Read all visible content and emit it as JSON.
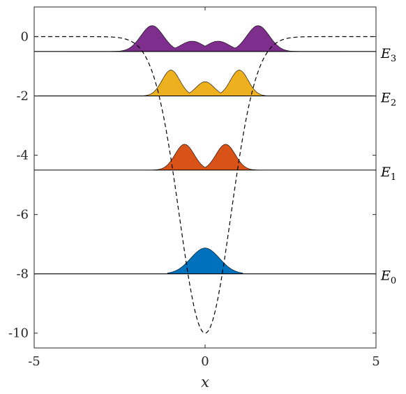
{
  "chart_data": {
    "type": "line",
    "xlabel": "x",
    "ylabel": "",
    "xlim": [
      -5,
      5
    ],
    "ylim": [
      -10.5,
      1
    ],
    "x_ticks": [
      -5,
      0,
      5
    ],
    "x_tick_labels": [
      "-5",
      "0",
      "5"
    ],
    "y_ticks": [
      0,
      -2,
      -4,
      -6,
      -8,
      -10
    ],
    "y_tick_labels": [
      "0",
      "-2",
      "-4",
      "-6",
      "-8",
      "-10"
    ],
    "grid": false,
    "potential": {
      "style": "dashed",
      "color": "#000000",
      "depth": 10,
      "width": 0.75,
      "min_x": 0,
      "min_y": -10,
      "plateau_y": 0
    },
    "levels": [
      {
        "name": "E",
        "sub": "0",
        "energy": -8.0,
        "color": "#0072BD",
        "peak_heights": [
          1.0
        ],
        "peak_x": [
          0
        ],
        "extent": 1.1
      },
      {
        "name": "E",
        "sub": "1",
        "energy": -4.5,
        "color": "#D95319",
        "peak_heights": [
          1.0,
          1.0
        ],
        "peak_x": [
          -0.6,
          0.6
        ],
        "extent": 1.7
      },
      {
        "name": "E",
        "sub": "2",
        "energy": -2.0,
        "color": "#EDB120",
        "peak_heights": [
          1.0,
          0.55,
          1.0
        ],
        "peak_x": [
          -1.0,
          0,
          1.0
        ],
        "extent": 2.5
      },
      {
        "name": "E",
        "sub": "3",
        "energy": -0.5,
        "color": "#7E2F8E",
        "peak_heights": [
          1.0,
          0.4,
          0.4,
          1.0
        ],
        "peak_x": [
          -1.55,
          -0.38,
          0.38,
          1.55
        ],
        "extent": 4.0
      }
    ]
  }
}
